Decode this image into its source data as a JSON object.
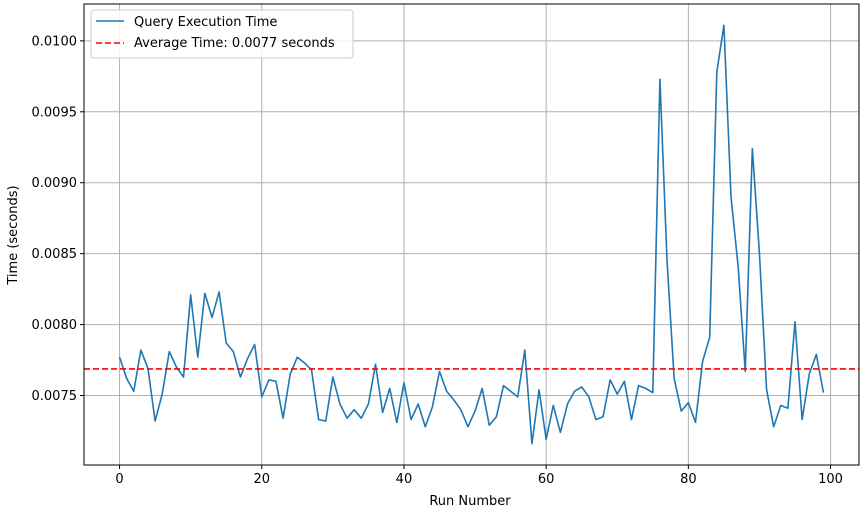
{
  "chart_data": {
    "type": "line",
    "title": "",
    "xlabel": "Run Number",
    "ylabel": "Time (seconds)",
    "xlim": [
      -5,
      104
    ],
    "ylim": [
      0.00701,
      0.01026
    ],
    "grid": true,
    "legend_position": "top-left",
    "x_ticks": [
      0,
      20,
      40,
      60,
      80,
      100
    ],
    "y_ticks": [
      0.0075,
      0.008,
      0.0085,
      0.009,
      0.0095,
      0.01
    ],
    "x_tick_labels": [
      "0",
      "20",
      "40",
      "60",
      "80",
      "100"
    ],
    "y_tick_labels": [
      "0.0075",
      "0.0080",
      "0.0085",
      "0.0090",
      "0.0095",
      "0.0100"
    ],
    "series": [
      {
        "name": "Query Execution Time",
        "color": "#1f77b4",
        "style": "solid",
        "x": [
          0,
          1,
          2,
          3,
          4,
          5,
          6,
          7,
          8,
          9,
          10,
          11,
          12,
          13,
          14,
          15,
          16,
          17,
          18,
          19,
          20,
          21,
          22,
          23,
          24,
          25,
          26,
          27,
          28,
          29,
          30,
          31,
          32,
          33,
          34,
          35,
          36,
          37,
          38,
          39,
          40,
          41,
          42,
          43,
          44,
          45,
          46,
          47,
          48,
          49,
          50,
          51,
          52,
          53,
          54,
          55,
          56,
          57,
          58,
          59,
          60,
          61,
          62,
          63,
          64,
          65,
          66,
          67,
          68,
          69,
          70,
          71,
          72,
          73,
          74,
          75,
          76,
          77,
          78,
          79,
          80,
          81,
          82,
          83,
          84,
          85,
          86,
          87,
          88,
          89,
          90,
          91,
          92,
          93,
          94,
          95,
          96,
          97,
          98,
          99
        ],
        "values": [
          0.00777,
          0.00762,
          0.00753,
          0.00782,
          0.00769,
          0.00732,
          0.00751,
          0.00781,
          0.0077,
          0.00763,
          0.00821,
          0.00777,
          0.00822,
          0.00805,
          0.00823,
          0.00787,
          0.00781,
          0.00763,
          0.00776,
          0.00786,
          0.00749,
          0.00761,
          0.0076,
          0.00734,
          0.00765,
          0.00777,
          0.00773,
          0.00768,
          0.00733,
          0.00732,
          0.00763,
          0.00744,
          0.00734,
          0.0074,
          0.00734,
          0.00744,
          0.00772,
          0.00738,
          0.00755,
          0.00731,
          0.00759,
          0.00733,
          0.00744,
          0.00728,
          0.00742,
          0.00767,
          0.00753,
          0.00747,
          0.0074,
          0.00728,
          0.00739,
          0.00755,
          0.00729,
          0.00735,
          0.00757,
          0.00753,
          0.00749,
          0.00782,
          0.00716,
          0.00754,
          0.00719,
          0.00743,
          0.00724,
          0.00744,
          0.00753,
          0.00756,
          0.00749,
          0.00733,
          0.00735,
          0.00761,
          0.00751,
          0.0076,
          0.00733,
          0.00757,
          0.00755,
          0.00752,
          0.00973,
          0.00845,
          0.00762,
          0.00739,
          0.00745,
          0.00731,
          0.00774,
          0.00791,
          0.00978,
          0.01011,
          0.0089,
          0.00841,
          0.00767,
          0.00924,
          0.0085,
          0.00754,
          0.00728,
          0.00743,
          0.00741,
          0.00802,
          0.00733,
          0.00765,
          0.00779,
          0.00752
        ]
      },
      {
        "name": "Average Time: 0.0077 seconds",
        "color": "#ff0000",
        "style": "dashed",
        "constant": 0.007687
      }
    ]
  }
}
